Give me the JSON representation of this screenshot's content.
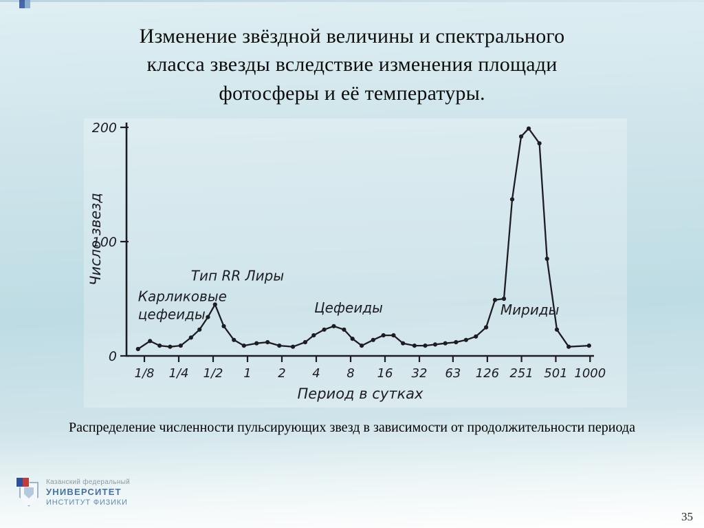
{
  "slide": {
    "title_lines": [
      "Изменение звёздной величины и спектрального",
      "класса звезды вследствие изменения площади",
      "фотосферы и её температуры."
    ],
    "caption": "Распределение численности пульсирующих звезд в зависимости от продолжительности периода",
    "page_number": "35"
  },
  "footer": {
    "org_line1": "Казанский федеральный",
    "org_line2": "УНИВЕРСИТЕТ",
    "org_line3": "ИНСТИТУТ ФИЗИКИ"
  },
  "colors": {
    "ink": "#1c1c22",
    "logo_blue": "#2d4f9e",
    "logo_red": "#c43b3b",
    "background_top": "#dfeff3",
    "background_bottom": "#ffffff"
  },
  "chart_data": {
    "type": "line",
    "title": "",
    "xlabel": "Период в сутках",
    "ylabel": "Число звезд",
    "x_scale": "log2",
    "grid": false,
    "legend": "none",
    "ylim": [
      0,
      210
    ],
    "y_ticks": [
      0,
      100,
      200
    ],
    "x_ticks": [
      "1/8",
      "1/4",
      "1/2",
      "1",
      "2",
      "4",
      "8",
      "16",
      "32",
      "63",
      "126",
      "251",
      "501",
      "1000"
    ],
    "x_tick_values": [
      0.125,
      0.25,
      0.5,
      1,
      2,
      4,
      8,
      16,
      32,
      63,
      126,
      251,
      501,
      1000
    ],
    "annotations": [
      {
        "text": "Карликовые\nцефеиды",
        "x": 0.11,
        "y": 48
      },
      {
        "text": "Тип RR Лиры",
        "x": 0.32,
        "y": 66
      },
      {
        "text": "Цефеиды",
        "x": 3.84,
        "y": 38
      },
      {
        "text": "Мириды",
        "x": 164,
        "y": 36
      }
    ],
    "points": [
      [
        0.11,
        6
      ],
      [
        0.14,
        13
      ],
      [
        0.17,
        9
      ],
      [
        0.21,
        8
      ],
      [
        0.26,
        9
      ],
      [
        0.32,
        16
      ],
      [
        0.38,
        23
      ],
      [
        0.45,
        34
      ],
      [
        0.52,
        45
      ],
      [
        0.62,
        26
      ],
      [
        0.76,
        14
      ],
      [
        0.93,
        9
      ],
      [
        1.2,
        11
      ],
      [
        1.5,
        12
      ],
      [
        1.9,
        9
      ],
      [
        2.5,
        8
      ],
      [
        3.2,
        12
      ],
      [
        3.8,
        18
      ],
      [
        4.7,
        23
      ],
      [
        5.7,
        26
      ],
      [
        7.0,
        23
      ],
      [
        8.3,
        15
      ],
      [
        10,
        9
      ],
      [
        12.6,
        14
      ],
      [
        15.5,
        18
      ],
      [
        19,
        18
      ],
      [
        23,
        11
      ],
      [
        29,
        9
      ],
      [
        36,
        9
      ],
      [
        44,
        10
      ],
      [
        54,
        11
      ],
      [
        67,
        12
      ],
      [
        82,
        14
      ],
      [
        100,
        17
      ],
      [
        123,
        25
      ],
      [
        147,
        49
      ],
      [
        176,
        50
      ],
      [
        208,
        137
      ],
      [
        249,
        192
      ],
      [
        290,
        199
      ],
      [
        360,
        186
      ],
      [
        420,
        85
      ],
      [
        512,
        23
      ],
      [
        650,
        8
      ],
      [
        980,
        9
      ]
    ]
  }
}
